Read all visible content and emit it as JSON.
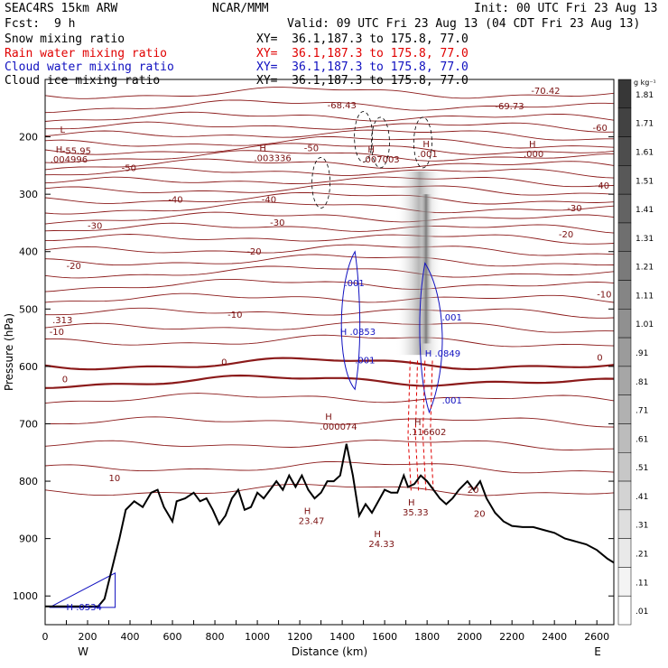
{
  "header": {
    "model": "SEAC4RS 15km ARW",
    "org": "NCAR/MMM",
    "init": "Init: 00 UTC Fri 23 Aug 13",
    "fcst_label": "Fcst:",
    "fcst_value": "9 h",
    "valid": "Valid: 09 UTC Fri 23 Aug 13 (04 CDT Fri 23 Aug 13)"
  },
  "legend": [
    {
      "name": "Snow mixing ratio",
      "xy": "XY=  36.1,187.3 to 175.8, 77.0",
      "color": "#000000"
    },
    {
      "name": "Rain water mixing ratio",
      "xy": "XY=  36.1,187.3 to 175.8, 77.0",
      "color": "#e00000"
    },
    {
      "name": "Cloud water mixing ratio",
      "xy": "XY=  36.1,187.3 to 175.8, 77.0",
      "color": "#1010c0"
    },
    {
      "name": "Cloud ice mixing ratio",
      "xy": "XY=  36.1,187.3 to 175.8, 77.0",
      "color": "#000000"
    }
  ],
  "colorbar": {
    "unit": "g kg⁻¹",
    "levels": [
      ".01",
      ".11",
      ".21",
      ".31",
      ".41",
      ".51",
      ".61",
      ".71",
      ".81",
      ".91",
      "1.01",
      "1.11",
      "1.21",
      "1.31",
      "1.41",
      "1.51",
      "1.61",
      "1.71",
      "1.81"
    ]
  },
  "chart_data": {
    "type": "cross-section",
    "xlabel": "Distance (km)",
    "ylabel": "Pressure (hPa)",
    "xlim": [
      0,
      2680
    ],
    "ylim": [
      1050,
      100
    ],
    "x_ticks": [
      "0",
      "100",
      "200",
      "300",
      "400",
      "500",
      "600",
      "700",
      "800",
      "900",
      "1000",
      "1100",
      "1200",
      "1300",
      "1400",
      "1500",
      "1600",
      "1700",
      "1800",
      "1900",
      "2000",
      "2100",
      "2200",
      "2300",
      "2400",
      "2500",
      "2600"
    ],
    "x_tick_labels": [
      "0",
      "200",
      "400",
      "600",
      "800",
      "1000",
      "1200",
      "1400",
      "1600",
      "1800",
      "2000",
      "2200",
      "2400",
      "2600"
    ],
    "y_tick_labels": [
      "200",
      "300",
      "400",
      "500",
      "600",
      "700",
      "800",
      "900",
      "1000"
    ],
    "y_ticks": [
      200,
      300,
      400,
      500,
      600,
      700,
      800,
      900,
      1000
    ],
    "end_labels": {
      "left": "W",
      "right": "E"
    },
    "terrain": [
      [
        0,
        1018
      ],
      [
        250,
        1018
      ],
      [
        280,
        1005
      ],
      [
        320,
        945
      ],
      [
        350,
        900
      ],
      [
        380,
        850
      ],
      [
        420,
        835
      ],
      [
        460,
        845
      ],
      [
        500,
        820
      ],
      [
        530,
        815
      ],
      [
        560,
        845
      ],
      [
        600,
        870
      ],
      [
        620,
        835
      ],
      [
        660,
        830
      ],
      [
        700,
        820
      ],
      [
        730,
        835
      ],
      [
        760,
        830
      ],
      [
        790,
        850
      ],
      [
        820,
        875
      ],
      [
        850,
        860
      ],
      [
        880,
        830
      ],
      [
        910,
        815
      ],
      [
        940,
        850
      ],
      [
        970,
        845
      ],
      [
        1000,
        820
      ],
      [
        1030,
        830
      ],
      [
        1060,
        815
      ],
      [
        1090,
        800
      ],
      [
        1120,
        815
      ],
      [
        1150,
        790
      ],
      [
        1180,
        810
      ],
      [
        1210,
        790
      ],
      [
        1240,
        815
      ],
      [
        1270,
        830
      ],
      [
        1300,
        820
      ],
      [
        1330,
        800
      ],
      [
        1360,
        800
      ],
      [
        1390,
        790
      ],
      [
        1420,
        735
      ],
      [
        1450,
        790
      ],
      [
        1480,
        860
      ],
      [
        1510,
        840
      ],
      [
        1540,
        855
      ],
      [
        1570,
        835
      ],
      [
        1600,
        815
      ],
      [
        1630,
        820
      ],
      [
        1660,
        820
      ],
      [
        1690,
        790
      ],
      [
        1710,
        810
      ],
      [
        1740,
        805
      ],
      [
        1770,
        790
      ],
      [
        1800,
        800
      ],
      [
        1830,
        815
      ],
      [
        1860,
        830
      ],
      [
        1890,
        840
      ],
      [
        1920,
        830
      ],
      [
        1950,
        815
      ],
      [
        1990,
        800
      ],
      [
        2020,
        815
      ],
      [
        2050,
        800
      ],
      [
        2080,
        830
      ],
      [
        2120,
        855
      ],
      [
        2160,
        870
      ],
      [
        2200,
        878
      ],
      [
        2250,
        880
      ],
      [
        2300,
        880
      ],
      [
        2350,
        885
      ],
      [
        2400,
        890
      ],
      [
        2450,
        900
      ],
      [
        2500,
        905
      ],
      [
        2550,
        910
      ],
      [
        2600,
        920
      ],
      [
        2650,
        935
      ],
      [
        2680,
        942
      ]
    ],
    "temperature_labels": [
      {
        "x": 1330,
        "p": 150,
        "text": "-68.43"
      },
      {
        "x": 2120,
        "p": 152,
        "text": "-69.73"
      },
      {
        "x": 2290,
        "p": 125,
        "text": "-70.42"
      },
      {
        "x": 2580,
        "p": 190,
        "text": "-60"
      },
      {
        "x": 80,
        "p": 230,
        "text": "-55.95"
      },
      {
        "x": 1220,
        "p": 225,
        "text": "-50"
      },
      {
        "x": 360,
        "p": 260,
        "text": "-50"
      },
      {
        "x": 2590,
        "p": 290,
        "text": "-40"
      },
      {
        "x": 580,
        "p": 315,
        "text": "-40"
      },
      {
        "x": 1020,
        "p": 315,
        "text": "-40"
      },
      {
        "x": 2460,
        "p": 330,
        "text": "-30"
      },
      {
        "x": 1060,
        "p": 355,
        "text": "-30"
      },
      {
        "x": 200,
        "p": 360,
        "text": "-30"
      },
      {
        "x": 2420,
        "p": 375,
        "text": "-20"
      },
      {
        "x": 950,
        "p": 405,
        "text": "-20"
      },
      {
        "x": 100,
        "p": 430,
        "text": "-20"
      },
      {
        "x": 2600,
        "p": 480,
        "text": "-10"
      },
      {
        "x": 860,
        "p": 515,
        "text": "-10"
      },
      {
        "x": 20,
        "p": 545,
        "text": "-10"
      },
      {
        "x": 2600,
        "p": 590,
        "text": "0"
      },
      {
        "x": 830,
        "p": 598,
        "text": "0"
      },
      {
        "x": 80,
        "p": 628,
        "text": "0"
      },
      {
        "x": 300,
        "p": 800,
        "text": "10"
      },
      {
        "x": 1990,
        "p": 820,
        "text": "20"
      },
      {
        "x": 2020,
        "p": 862,
        "text": "20"
      }
    ],
    "hl_labels": [
      {
        "x": 70,
        "p": 210,
        "h": "L",
        "v": ""
      },
      {
        "x": 50,
        "p": 245,
        "h": "H",
        "v": ".004996"
      },
      {
        "x": 1010,
        "p": 242,
        "h": "H",
        "v": ".003336"
      },
      {
        "x": 1520,
        "p": 245,
        "h": "H",
        "v": ".007003"
      },
      {
        "x": 1780,
        "p": 235,
        "h": "H",
        "v": ".001"
      },
      {
        "x": 2280,
        "p": 235,
        "h": "H",
        "v": ".000"
      },
      {
        "x": 1320,
        "p": 710,
        "h": "H",
        "v": ".000074"
      },
      {
        "x": 1740,
        "p": 720,
        "h": "H",
        "v": ".116602"
      },
      {
        "x": 1710,
        "p": 860,
        "h": "H",
        "v": "35.33"
      },
      {
        "x": 1220,
        "p": 875,
        "h": "H",
        "v": "23.47"
      },
      {
        "x": 1550,
        "p": 915,
        "h": "H",
        "v": "24.33"
      },
      {
        "x": 60,
        "p": 525,
        "h": "",
        "v": ".313"
      }
    ],
    "blue_labels": [
      {
        "x": 1410,
        "p": 460,
        "text": ".001"
      },
      {
        "x": 1390,
        "p": 545,
        "text": "H .0853"
      },
      {
        "x": 1460,
        "p": 595,
        "text": ".001"
      },
      {
        "x": 1870,
        "p": 520,
        "text": ".001"
      },
      {
        "x": 1790,
        "p": 583,
        "text": "H .0849"
      },
      {
        "x": 1870,
        "p": 665,
        "text": ".001"
      },
      {
        "x": 100,
        "p": 1025,
        "text": "H .0534"
      }
    ]
  }
}
